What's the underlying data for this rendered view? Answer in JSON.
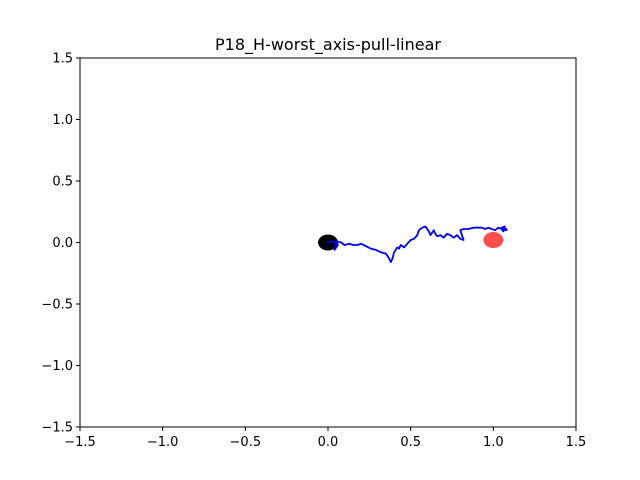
{
  "chart_data": {
    "type": "line",
    "title": "P18_H-worst_axis-pull-linear",
    "xlabel": "",
    "ylabel": "",
    "xlim": [
      -1.5,
      1.5
    ],
    "ylim": [
      -1.5,
      1.5
    ],
    "grid": false,
    "xticks": [
      -1.5,
      -1.0,
      -0.5,
      0.0,
      0.5,
      1.0,
      1.5
    ],
    "yticks": [
      -1.5,
      -1.0,
      -0.5,
      0.0,
      0.5,
      1.0,
      1.5
    ],
    "xtick_labels": [
      "−1.5",
      "−1.0",
      "−0.5",
      "0.0",
      "0.5",
      "1.0",
      "1.5"
    ],
    "ytick_labels": [
      "−1.5",
      "−1.0",
      "−0.5",
      "0.0",
      "0.5",
      "1.0",
      "1.5"
    ],
    "series": [
      {
        "color": "#0000ee",
        "x": [
          0.0,
          0.02,
          0.04,
          0.05,
          0.04,
          0.06,
          0.05,
          0.08,
          0.1,
          0.13,
          0.15,
          0.18,
          0.2,
          0.23,
          0.26,
          0.29,
          0.32,
          0.35,
          0.37,
          0.38,
          0.39,
          0.4,
          0.42,
          0.43,
          0.44,
          0.46,
          0.48,
          0.5,
          0.52,
          0.54,
          0.55,
          0.57,
          0.59,
          0.6,
          0.61,
          0.62,
          0.64,
          0.65,
          0.66,
          0.68,
          0.7,
          0.72,
          0.74,
          0.76,
          0.78,
          0.8,
          0.82,
          0.81,
          0.8,
          0.82,
          0.85,
          0.88,
          0.9,
          0.93,
          0.95,
          0.97,
          0.99,
          1.01,
          1.03,
          1.05,
          1.06,
          1.07,
          1.05,
          1.07,
          1.08,
          1.06,
          1.08
        ],
        "y": [
          0.0,
          0.01,
          0.0,
          -0.03,
          -0.06,
          -0.02,
          0.01,
          0.0,
          -0.02,
          -0.01,
          -0.02,
          -0.02,
          -0.01,
          -0.03,
          -0.05,
          -0.06,
          -0.08,
          -0.09,
          -0.13,
          -0.16,
          -0.13,
          -0.08,
          -0.04,
          -0.05,
          -0.02,
          -0.04,
          -0.01,
          0.02,
          0.03,
          0.06,
          0.1,
          0.12,
          0.13,
          0.11,
          0.09,
          0.06,
          0.1,
          0.07,
          0.05,
          0.06,
          0.04,
          0.07,
          0.06,
          0.04,
          0.06,
          0.03,
          0.02,
          0.06,
          0.1,
          0.11,
          0.11,
          0.12,
          0.12,
          0.12,
          0.11,
          0.12,
          0.11,
          0.1,
          0.12,
          0.11,
          0.09,
          0.13,
          0.12,
          0.11,
          0.11,
          0.1,
          0.1
        ]
      }
    ],
    "markers": [
      {
        "x": 0.0,
        "y": 0.0,
        "color": "#000000"
      },
      {
        "x": 1.0,
        "y": 0.02,
        "color": "#ff0000"
      }
    ]
  }
}
